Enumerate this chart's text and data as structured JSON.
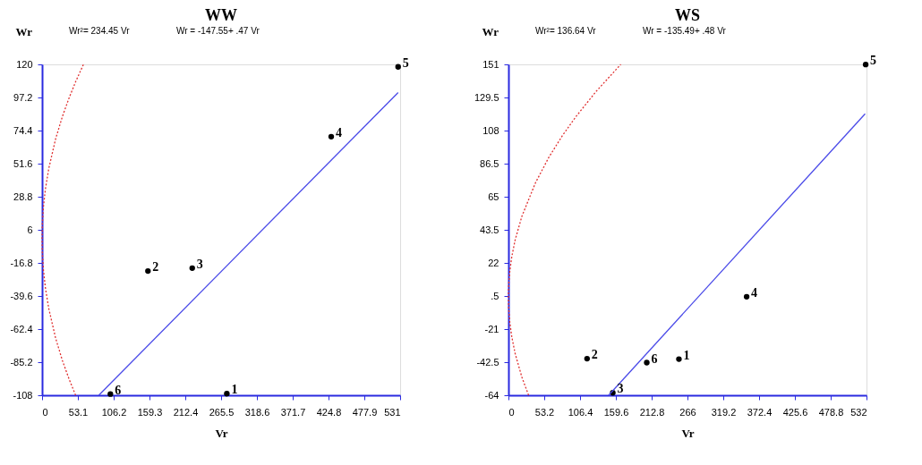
{
  "chart_data": [
    {
      "type": "scatter",
      "title": "WW",
      "xlabel": "Vr",
      "ylabel": "Wr",
      "xlim": [
        0,
        531
      ],
      "ylim": [
        -108,
        120
      ],
      "xticks": [
        0,
        53.1,
        106.2,
        159.3,
        212.4,
        265.5,
        318.6,
        371.7,
        424.8,
        477.9,
        531
      ],
      "yticks": [
        -108,
        -85.2,
        -62.4,
        -39.6,
        -16.8,
        6,
        28.8,
        51.6,
        74.4,
        97.2,
        120
      ],
      "grid": false,
      "series": [
        {
          "type": "scatter",
          "color": "#000000",
          "marker": "circle",
          "x": [
            274,
            157,
            222.7,
            428.8,
            528,
            101.3
          ],
          "values": [
            -106.9,
            -22.4,
            -20.4,
            70.2,
            118.3,
            -107.2
          ]
        },
        {
          "type": "line",
          "color": "#4a4ae8",
          "line_style": "solid",
          "x": [
            84.1,
            528
          ],
          "values": [
            -108,
            100.6
          ]
        },
        {
          "type": "line",
          "color": "#e03030",
          "line_style": "dotted",
          "x": [
            49.75,
            40,
            30,
            20,
            10,
            5,
            2,
            0.5,
            0,
            0.5,
            2,
            5,
            10,
            20,
            30,
            40,
            50,
            61.42
          ],
          "values": [
            -108.0,
            -96.8,
            -83.9,
            -68.5,
            -48.4,
            -34.2,
            -21.7,
            -10.8,
            0,
            10.8,
            21.7,
            34.2,
            48.4,
            68.5,
            83.9,
            96.8,
            108.3,
            120.0
          ]
        }
      ],
      "annotations": [
        "Wr²= 234.45 Vr",
        "Wr = -147.55+ .47 Vr",
        {
          "text": "1",
          "x": 274,
          "y": -106.9
        },
        {
          "text": "2",
          "x": 157,
          "y": -22.4
        },
        {
          "text": "3",
          "x": 222.7,
          "y": -20.4
        },
        {
          "text": "4",
          "x": 428.8,
          "y": 70.2
        },
        {
          "text": "5",
          "x": 528,
          "y": 118.3
        },
        {
          "text": "6",
          "x": 101.3,
          "y": -107.2
        }
      ]
    },
    {
      "type": "scatter",
      "title": "WS",
      "xlabel": "Vr",
      "ylabel": "Wr",
      "xlim": [
        0,
        532
      ],
      "ylim": [
        -64,
        151
      ],
      "xticks": [
        0,
        53.2,
        106.4,
        159.6,
        212.8,
        266,
        319.2,
        372.4,
        425.6,
        478.8,
        532
      ],
      "yticks": [
        -64,
        -42.5,
        -21,
        {
          "value": 0.5,
          "label": ".5"
        },
        22,
        43.5,
        65,
        86.5,
        108,
        129.5,
        151
      ],
      "grid": false,
      "series": [
        {
          "type": "scatter",
          "color": "#000000",
          "marker": "circle",
          "x": [
            253.3,
            116.8,
            155,
            353.9,
            530.8,
            205.5
          ],
          "values": [
            -40.5,
            -40.2,
            -62.4,
            0,
            150.9,
            -42.8
          ]
        },
        {
          "type": "line",
          "color": "#4a4ae8",
          "line_style": "solid",
          "x": [
            148.9,
            530
          ],
          "values": [
            -64,
            118.9
          ]
        },
        {
          "type": "line",
          "color": "#e03030",
          "line_style": "dotted",
          "x": [
            29.98,
            20,
            10,
            5,
            2,
            0.5,
            0,
            0.5,
            2,
            5,
            10,
            20,
            40,
            60,
            80,
            100,
            130,
            166.87
          ],
          "values": [
            -64.0,
            -52.3,
            -37.0,
            -26.1,
            -16.5,
            -8.3,
            0,
            8.3,
            16.5,
            26.1,
            37.0,
            52.3,
            73.9,
            90.6,
            104.6,
            116.9,
            133.3,
            151.0
          ]
        }
      ],
      "annotations": [
        "Wr²= 136.64 Vr",
        "Wr = -135.49+ .48 Vr",
        {
          "text": "1",
          "x": 253.3,
          "y": -40.5
        },
        {
          "text": "2",
          "x": 116.8,
          "y": -40.2
        },
        {
          "text": "3",
          "x": 155,
          "y": -62.4
        },
        {
          "text": "4",
          "x": 353.9,
          "y": 0
        },
        {
          "text": "5",
          "x": 530.8,
          "y": 150.9
        },
        {
          "text": "6",
          "x": 205.5,
          "y": -42.8
        }
      ]
    }
  ]
}
